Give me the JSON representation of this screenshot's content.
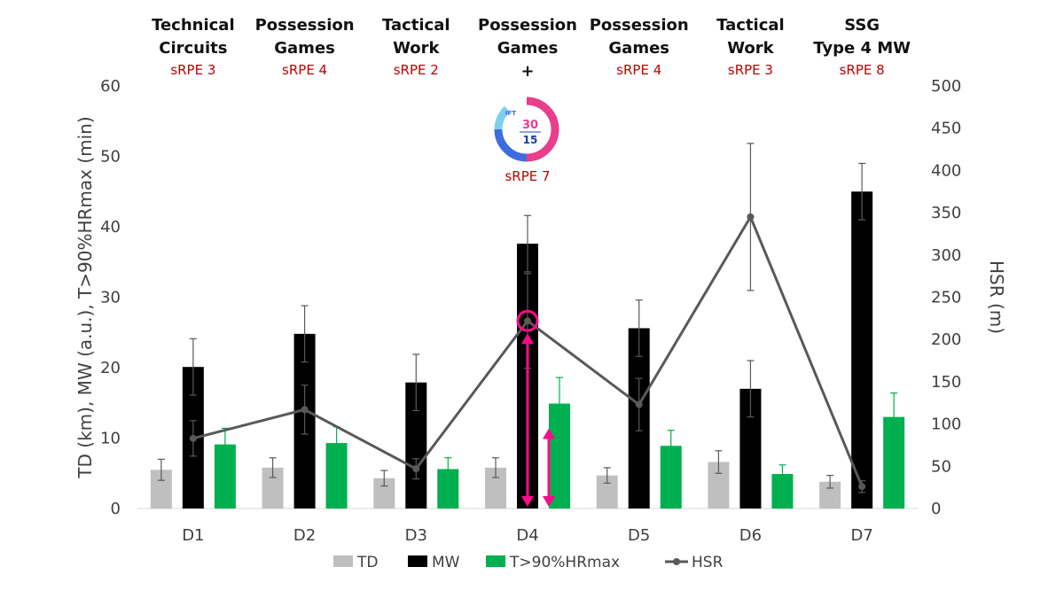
{
  "chart_data": {
    "type": "bar",
    "categories": [
      "D1",
      "D2",
      "D3",
      "D4",
      "D5",
      "D6",
      "D7"
    ],
    "session_titles": [
      [
        "Technical",
        "Circuits"
      ],
      [
        "Possession",
        "Games"
      ],
      [
        "Tactical",
        "Work"
      ],
      [
        "Possession",
        "Games",
        "+"
      ],
      [
        "Possession",
        "Games"
      ],
      [
        "Tactical",
        "Work"
      ],
      [
        "SSG",
        "Type 4 MW"
      ]
    ],
    "srpe_labels": [
      "sRPE 3",
      "sRPE 4",
      "sRPE 2",
      "sRPE 7",
      "sRPE 4",
      "sRPE 3",
      "sRPE 8"
    ],
    "logo": {
      "top_text": "IFT",
      "number_top": "30",
      "number_bottom": "15"
    },
    "series": [
      {
        "name": "TD",
        "axis": "left",
        "type": "bar",
        "color": "#bfbfbf",
        "values": [
          5.5,
          5.8,
          4.3,
          5.8,
          4.7,
          6.6,
          3.8
        ],
        "errors": [
          1.5,
          1.4,
          1.1,
          1.4,
          1.1,
          1.6,
          0.9
        ]
      },
      {
        "name": "MW",
        "axis": "left",
        "type": "bar",
        "color": "#000000",
        "values": [
          20.1,
          24.8,
          17.9,
          37.6,
          25.6,
          17.0,
          45.0
        ],
        "errors": [
          4.0,
          4.0,
          4.0,
          4.0,
          4.0,
          4.0,
          4.0
        ]
      },
      {
        "name": "T>90%HRmax",
        "axis": "left",
        "type": "bar",
        "color": "#00b050",
        "values": [
          9.1,
          9.3,
          5.6,
          14.9,
          8.9,
          4.9,
          13.0
        ],
        "errors": [
          2.3,
          2.3,
          1.6,
          3.7,
          2.2,
          1.3,
          3.4
        ]
      },
      {
        "name": "HSR",
        "axis": "right",
        "type": "line",
        "color": "#595959",
        "values": [
          83,
          117,
          47,
          222,
          123,
          345,
          26
        ],
        "errors": [
          21,
          29,
          12,
          56,
          31,
          87,
          7
        ]
      }
    ],
    "y_left": {
      "label": "TD (km), MW (a.u.), T>90%HRmax (min)",
      "min": 0,
      "max": 60,
      "ticks": [
        0,
        10,
        20,
        30,
        40,
        50,
        60
      ]
    },
    "y_right": {
      "label": "HSR (m)",
      "min": 0,
      "max": 500,
      "ticks": [
        0,
        50,
        100,
        150,
        200,
        250,
        300,
        350,
        400,
        450,
        500
      ]
    },
    "grid": false,
    "legend_position": "bottom",
    "annotation": {
      "category": "D4",
      "circle_on": "HSR",
      "arrow_color": "#ff0a8c"
    }
  }
}
